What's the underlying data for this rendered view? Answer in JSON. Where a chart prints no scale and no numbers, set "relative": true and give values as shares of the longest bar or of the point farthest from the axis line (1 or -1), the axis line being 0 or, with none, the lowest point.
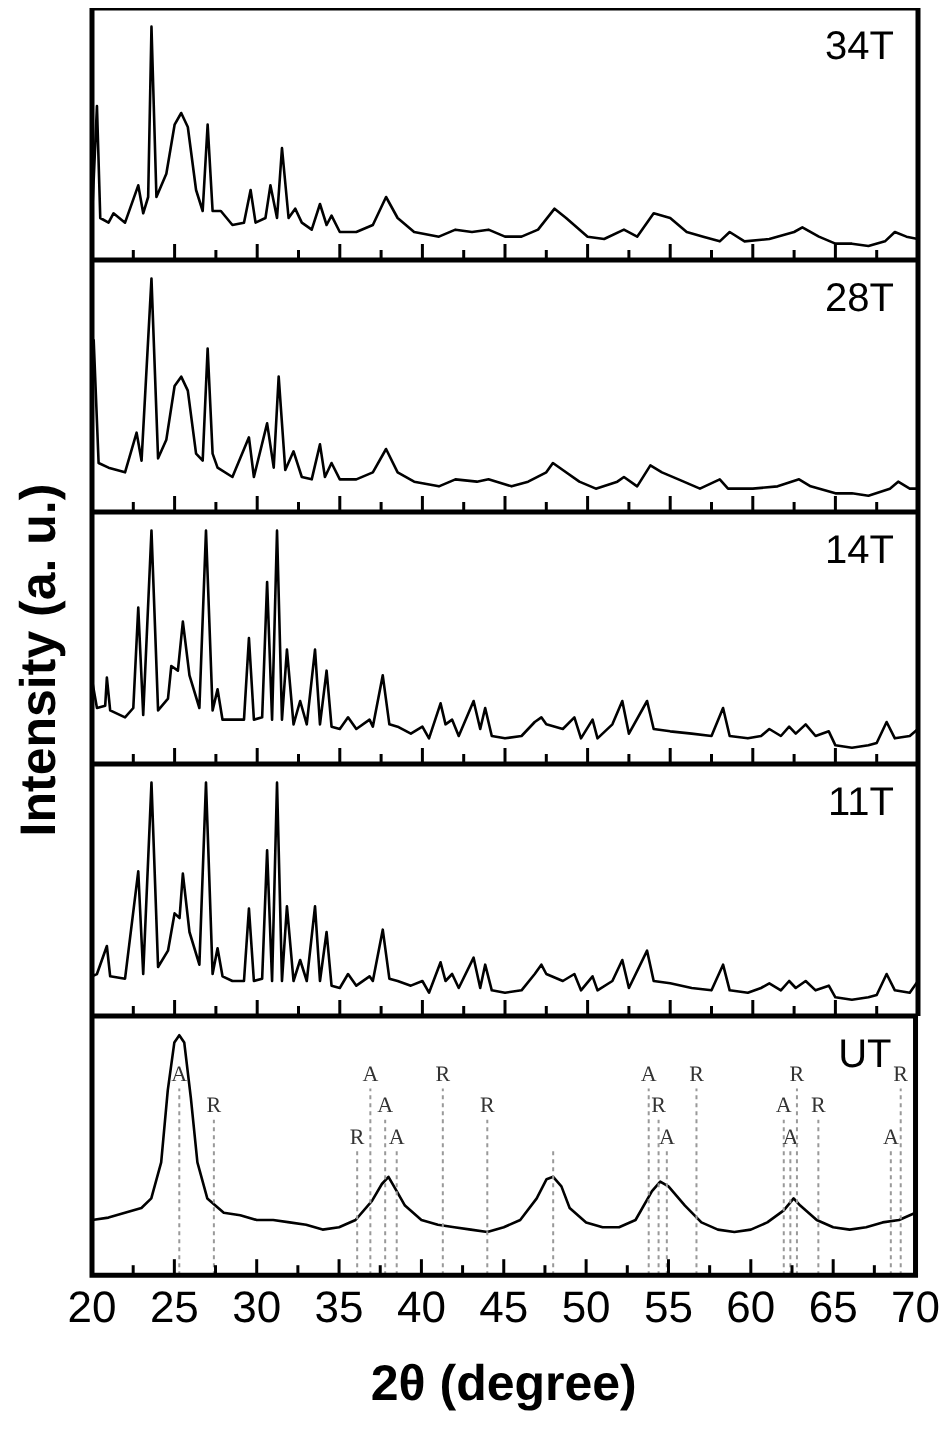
{
  "chart_data": [
    {
      "type": "line",
      "relative": true,
      "tick_labels": false,
      "xlim": [
        20,
        70
      ],
      "xticks": [
        20,
        {
          "value": 22.5,
          "label": null
        },
        25,
        {
          "value": 27.5,
          "label": null
        },
        30,
        {
          "value": 32.5,
          "label": null
        },
        35,
        {
          "value": 37.5,
          "label": null
        },
        40,
        {
          "value": 42.5,
          "label": null
        },
        45,
        {
          "value": 47.5,
          "label": null
        },
        50,
        {
          "value": 52.5,
          "label": null
        },
        55,
        {
          "value": 57.5,
          "label": null
        },
        60,
        {
          "value": 62.5,
          "label": null
        },
        65,
        {
          "value": 67.5,
          "label": null
        },
        70
      ],
      "series": [
        {
          "name": "34T",
          "color": "#000000",
          "x": [
            20.0,
            20.3,
            20.5,
            21,
            21.3,
            22,
            22.8,
            23.1,
            23.4,
            23.6,
            23.9,
            24.5,
            25.0,
            25.4,
            25.8,
            26.3,
            26.7,
            27.0,
            27.3,
            27.8,
            28.5,
            29.2,
            29.6,
            29.9,
            30.5,
            30.8,
            31.2,
            31.5,
            31.9,
            32.3,
            32.7,
            33.3,
            33.8,
            34.2,
            34.5,
            35,
            36,
            37,
            37.8,
            38.5,
            39.5,
            41,
            42,
            43,
            44,
            45,
            46,
            47,
            48,
            48.7,
            50,
            51,
            52.2,
            53,
            54,
            55,
            56,
            57,
            58,
            58.6,
            59.5,
            61,
            62.5,
            63,
            64,
            65,
            66,
            67,
            68,
            68.6,
            69.3,
            70
          ],
          "values": [
            0.18,
            0.66,
            0.18,
            0.16,
            0.2,
            0.16,
            0.32,
            0.2,
            0.27,
            1,
            0.27,
            0.37,
            0.58,
            0.63,
            0.57,
            0.3,
            0.21,
            0.58,
            0.21,
            0.21,
            0.15,
            0.16,
            0.3,
            0.16,
            0.18,
            0.32,
            0.18,
            0.48,
            0.18,
            0.22,
            0.16,
            0.13,
            0.24,
            0.15,
            0.19,
            0.12,
            0.12,
            0.15,
            0.27,
            0.18,
            0.12,
            0.1,
            0.13,
            0.12,
            0.13,
            0.1,
            0.1,
            0.13,
            0.22,
            0.18,
            0.1,
            0.09,
            0.13,
            0.1,
            0.2,
            0.18,
            0.12,
            0.1,
            0.08,
            0.12,
            0.08,
            0.09,
            0.12,
            0.14,
            0.1,
            0.07,
            0.07,
            0.06,
            0.08,
            0.12,
            0.1,
            0.09
          ]
        }
      ]
    },
    {
      "type": "line",
      "relative": true,
      "tick_labels": false,
      "xlim": [
        20,
        70
      ],
      "xticks": [
        20,
        {
          "value": 22.5,
          "label": null
        },
        25,
        {
          "value": 27.5,
          "label": null
        },
        30,
        {
          "value": 32.5,
          "label": null
        },
        35,
        {
          "value": 37.5,
          "label": null
        },
        40,
        {
          "value": 42.5,
          "label": null
        },
        45,
        {
          "value": 47.5,
          "label": null
        },
        50,
        {
          "value": 52.5,
          "label": null
        },
        55,
        {
          "value": 57.5,
          "label": null
        },
        60,
        {
          "value": 62.5,
          "label": null
        },
        65,
        {
          "value": 67.5,
          "label": null
        },
        70
      ],
      "series": [
        {
          "name": "28T",
          "color": "#000000",
          "x": [
            20.1,
            20.4,
            21,
            22,
            22.7,
            23,
            23.6,
            24,
            24.5,
            25.0,
            25.4,
            25.8,
            26.3,
            26.7,
            27.0,
            27.3,
            27.6,
            28.5,
            29.5,
            29.8,
            30.6,
            31.0,
            31.3,
            31.7,
            32.2,
            32.7,
            33.3,
            33.8,
            34.1,
            34.5,
            35,
            36,
            37,
            37.8,
            38.5,
            39.5,
            41,
            42,
            43.3,
            44,
            45.4,
            46.4,
            47.5,
            47.9,
            48.5,
            49.5,
            50.5,
            51.8,
            52.2,
            53,
            53.8,
            54.5,
            55.5,
            56.8,
            58.0,
            58.5,
            60,
            61.5,
            62.8,
            63.5,
            65,
            66,
            67,
            68.3,
            68.8,
            69.5,
            70
          ],
          "values": [
            0.74,
            0.21,
            0.19,
            0.17,
            0.34,
            0.22,
            1,
            0.23,
            0.31,
            0.54,
            0.58,
            0.52,
            0.25,
            0.22,
            0.7,
            0.25,
            0.19,
            0.15,
            0.32,
            0.15,
            0.38,
            0.19,
            0.58,
            0.18,
            0.26,
            0.15,
            0.14,
            0.29,
            0.15,
            0.21,
            0.14,
            0.14,
            0.17,
            0.27,
            0.17,
            0.13,
            0.11,
            0.14,
            0.13,
            0.14,
            0.11,
            0.13,
            0.17,
            0.21,
            0.18,
            0.13,
            0.1,
            0.13,
            0.15,
            0.11,
            0.2,
            0.17,
            0.14,
            0.1,
            0.14,
            0.1,
            0.1,
            0.11,
            0.14,
            0.11,
            0.08,
            0.08,
            0.07,
            0.1,
            0.13,
            0.1,
            0.1
          ]
        }
      ]
    },
    {
      "type": "line",
      "relative": true,
      "tick_labels": false,
      "ylabel": "Intensity (a. u.)",
      "xlim": [
        20,
        70
      ],
      "xticks": [
        20,
        {
          "value": 22.5,
          "label": null
        },
        25,
        {
          "value": 27.5,
          "label": null
        },
        30,
        {
          "value": 32.5,
          "label": null
        },
        35,
        {
          "value": 37.5,
          "label": null
        },
        40,
        {
          "value": 42.5,
          "label": null
        },
        45,
        {
          "value": 47.5,
          "label": null
        },
        50,
        {
          "value": 52.5,
          "label": null
        },
        55,
        {
          "value": 57.5,
          "label": null
        },
        60,
        {
          "value": 62.5,
          "label": null
        },
        65,
        {
          "value": 67.5,
          "label": null
        },
        70
      ],
      "series": [
        {
          "name": "14T",
          "color": "#000000",
          "x": [
            20.0,
            20.3,
            20.8,
            20.9,
            21.1,
            22,
            22.5,
            22.8,
            23.1,
            23.6,
            24.0,
            24.6,
            24.8,
            25.2,
            25.5,
            25.9,
            26.5,
            26.9,
            27.3,
            27.6,
            27.9,
            28.5,
            29.2,
            29.5,
            29.8,
            30.3,
            30.6,
            30.9,
            31.2,
            31.5,
            31.8,
            32.2,
            32.6,
            33,
            33.5,
            33.8,
            34.2,
            34.5,
            35,
            35.5,
            36,
            36.8,
            37.0,
            37.6,
            38.0,
            38.5,
            39.3,
            40,
            40.4,
            41.1,
            41.4,
            41.8,
            42.2,
            43.1,
            43.5,
            43.8,
            44.2,
            45,
            46,
            46.8,
            47.2,
            47.5,
            48.5,
            49.2,
            49.6,
            50.3,
            50.6,
            51.5,
            52.1,
            52.5,
            53.6,
            54.0,
            55,
            56.3,
            57.5,
            58.2,
            58.6,
            59.7,
            60.5,
            61,
            61.7,
            62.2,
            62.6,
            63.2,
            63.8,
            64.6,
            65,
            66,
            67,
            67.5,
            68.1,
            68.6,
            69.5,
            70
          ],
          "values": [
            0.36,
            0.24,
            0.25,
            0.37,
            0.23,
            0.2,
            0.24,
            0.67,
            0.21,
            1,
            0.23,
            0.28,
            0.42,
            0.4,
            0.61,
            0.38,
            0.24,
            1,
            0.23,
            0.32,
            0.19,
            0.19,
            0.19,
            0.54,
            0.19,
            0.2,
            0.78,
            0.19,
            1,
            0.19,
            0.49,
            0.17,
            0.27,
            0.17,
            0.49,
            0.17,
            0.4,
            0.16,
            0.15,
            0.2,
            0.15,
            0.19,
            0.16,
            0.38,
            0.17,
            0.16,
            0.13,
            0.16,
            0.11,
            0.26,
            0.17,
            0.19,
            0.12,
            0.27,
            0.15,
            0.24,
            0.12,
            0.11,
            0.12,
            0.18,
            0.2,
            0.17,
            0.15,
            0.2,
            0.11,
            0.19,
            0.11,
            0.17,
            0.27,
            0.13,
            0.27,
            0.15,
            0.14,
            0.13,
            0.12,
            0.24,
            0.12,
            0.11,
            0.12,
            0.15,
            0.12,
            0.16,
            0.13,
            0.17,
            0.12,
            0.14,
            0.08,
            0.07,
            0.08,
            0.09,
            0.18,
            0.11,
            0.12,
            0.15
          ]
        }
      ]
    },
    {
      "type": "line",
      "relative": true,
      "tick_labels": false,
      "xlim": [
        20,
        70
      ],
      "xticks": [
        20,
        {
          "value": 22.5,
          "label": null
        },
        25,
        {
          "value": 27.5,
          "label": null
        },
        30,
        {
          "value": 32.5,
          "label": null
        },
        35,
        {
          "value": 37.5,
          "label": null
        },
        40,
        {
          "value": 42.5,
          "label": null
        },
        45,
        {
          "value": 47.5,
          "label": null
        },
        50,
        {
          "value": 52.5,
          "label": null
        },
        55,
        {
          "value": 57.5,
          "label": null
        },
        60,
        {
          "value": 62.5,
          "label": null
        },
        65,
        {
          "value": 67.5,
          "label": null
        },
        70
      ],
      "series": [
        {
          "name": "11T",
          "color": "#000000",
          "x": [
            20.0,
            20.3,
            20.9,
            21.1,
            22,
            22.8,
            23.1,
            23.6,
            24.0,
            24.6,
            25.0,
            25.3,
            25.5,
            25.9,
            26.5,
            26.9,
            27.3,
            27.6,
            27.9,
            28.5,
            29.2,
            29.5,
            29.8,
            30.3,
            30.6,
            30.9,
            31.2,
            31.5,
            31.8,
            32.2,
            32.6,
            33,
            33.5,
            33.8,
            34.2,
            34.5,
            35,
            35.5,
            36,
            36.8,
            37.0,
            37.6,
            38.0,
            38.5,
            39.3,
            40,
            40.4,
            41.1,
            41.4,
            41.8,
            42.2,
            43.1,
            43.5,
            43.8,
            44.2,
            45,
            46,
            46.8,
            47.2,
            47.5,
            48.5,
            49.2,
            49.6,
            50.3,
            50.6,
            51.5,
            52.1,
            52.5,
            53.6,
            54.0,
            55,
            56.3,
            57.5,
            58.2,
            58.6,
            59.7,
            60.5,
            61,
            61.7,
            62.2,
            62.6,
            63.2,
            63.8,
            64.6,
            65,
            66,
            67,
            67.5,
            68.1,
            68.6,
            69.5,
            70
          ],
          "values": [
            0.17,
            0.18,
            0.3,
            0.17,
            0.16,
            0.62,
            0.18,
            1,
            0.21,
            0.28,
            0.44,
            0.42,
            0.61,
            0.36,
            0.22,
            1,
            0.18,
            0.29,
            0.17,
            0.15,
            0.15,
            0.46,
            0.15,
            0.16,
            0.71,
            0.15,
            1,
            0.15,
            0.47,
            0.15,
            0.24,
            0.15,
            0.47,
            0.15,
            0.36,
            0.13,
            0.12,
            0.18,
            0.13,
            0.17,
            0.15,
            0.37,
            0.16,
            0.15,
            0.13,
            0.15,
            0.1,
            0.23,
            0.15,
            0.18,
            0.12,
            0.25,
            0.12,
            0.22,
            0.11,
            0.1,
            0.11,
            0.18,
            0.22,
            0.18,
            0.15,
            0.18,
            0.11,
            0.17,
            0.11,
            0.15,
            0.24,
            0.12,
            0.28,
            0.15,
            0.14,
            0.12,
            0.11,
            0.22,
            0.11,
            0.1,
            0.12,
            0.14,
            0.11,
            0.15,
            0.12,
            0.15,
            0.11,
            0.13,
            0.08,
            0.07,
            0.08,
            0.09,
            0.18,
            0.11,
            0.1,
            0.15
          ]
        }
      ]
    },
    {
      "type": "line",
      "relative": true,
      "tick_labels": "x",
      "xlabel": "2θ (degree)",
      "xlim": [
        20,
        70
      ],
      "xticks": [
        20,
        {
          "value": 22.5,
          "label": null
        },
        25,
        {
          "value": 27.5,
          "label": null
        },
        30,
        {
          "value": 32.5,
          "label": null
        },
        35,
        {
          "value": 37.5,
          "label": null
        },
        40,
        {
          "value": 42.5,
          "label": null
        },
        45,
        {
          "value": 47.5,
          "label": null
        },
        50,
        {
          "value": 52.5,
          "label": null
        },
        55,
        {
          "value": 57.5,
          "label": null
        },
        60,
        {
          "value": 62.5,
          "label": null
        },
        65,
        {
          "value": 67.5,
          "label": null
        },
        70
      ],
      "series": [
        {
          "name": "UT",
          "color": "#000000",
          "x": [
            20,
            21,
            22,
            23,
            23.6,
            24.2,
            24.6,
            25.0,
            25.3,
            25.6,
            26.0,
            26.4,
            27,
            28,
            29,
            30,
            31,
            32,
            33,
            34,
            35,
            36,
            37,
            37.6,
            38,
            38.5,
            39,
            40,
            41,
            42,
            43,
            44,
            45,
            46,
            47,
            47.6,
            48,
            48.5,
            49,
            50,
            51,
            52,
            53,
            54,
            54.5,
            55,
            56,
            57,
            58,
            59,
            60,
            61,
            62,
            62.6,
            63,
            64,
            65,
            66,
            67,
            68,
            69,
            70
          ],
          "values": [
            0.23,
            0.24,
            0.26,
            0.28,
            0.32,
            0.47,
            0.77,
            0.97,
            1,
            0.97,
            0.74,
            0.47,
            0.32,
            0.26,
            0.25,
            0.23,
            0.23,
            0.22,
            0.21,
            0.19,
            0.2,
            0.23,
            0.31,
            0.38,
            0.41,
            0.35,
            0.29,
            0.23,
            0.21,
            0.2,
            0.19,
            0.18,
            0.2,
            0.23,
            0.32,
            0.4,
            0.41,
            0.37,
            0.28,
            0.22,
            0.2,
            0.2,
            0.23,
            0.35,
            0.39,
            0.37,
            0.29,
            0.22,
            0.19,
            0.18,
            0.19,
            0.22,
            0.27,
            0.32,
            0.29,
            0.23,
            0.2,
            0.19,
            0.2,
            0.22,
            0.23,
            0.26
          ]
        }
      ],
      "ref_lines": [
        {
          "axis": "x",
          "value": 25.3,
          "label": "A",
          "color": "#999999",
          "line_style": "dotted"
        },
        {
          "axis": "x",
          "value": 27.4,
          "label": "R",
          "color": "#999999",
          "line_style": "dotted"
        },
        {
          "axis": "x",
          "value": 36.1,
          "label": "R",
          "color": "#999999",
          "line_style": "dotted"
        },
        {
          "axis": "x",
          "value": 36.9,
          "label": "A",
          "color": "#999999",
          "line_style": "dotted"
        },
        {
          "axis": "x",
          "value": 37.8,
          "label": "A",
          "color": "#999999",
          "line_style": "dotted"
        },
        {
          "axis": "x",
          "value": 38.5,
          "label": "A",
          "color": "#999999",
          "line_style": "dotted"
        },
        {
          "axis": "x",
          "value": 41.3,
          "label": "R",
          "color": "#999999",
          "line_style": "dotted"
        },
        {
          "axis": "x",
          "value": 44.0,
          "label": "R",
          "color": "#999999",
          "line_style": "dotted"
        },
        {
          "axis": "x",
          "value": 48.0,
          "color": "#999999",
          "line_style": "dotted"
        },
        {
          "axis": "x",
          "value": 53.8,
          "label": "A",
          "color": "#999999",
          "line_style": "dotted"
        },
        {
          "axis": "x",
          "value": 54.4,
          "label": "R",
          "color": "#999999",
          "line_style": "dotted"
        },
        {
          "axis": "x",
          "value": 54.9,
          "label": "A",
          "color": "#999999",
          "line_style": "dotted"
        },
        {
          "axis": "x",
          "value": 56.7,
          "label": "R",
          "color": "#999999",
          "line_style": "dotted"
        },
        {
          "axis": "x",
          "value": 62.0,
          "label": "A",
          "color": "#999999",
          "line_style": "dotted"
        },
        {
          "axis": "x",
          "value": 62.4,
          "label": "A",
          "color": "#999999",
          "line_style": "dotted"
        },
        {
          "axis": "x",
          "value": 62.8,
          "label": "R",
          "color": "#999999",
          "line_style": "dotted"
        },
        {
          "axis": "x",
          "value": 64.1,
          "label": "R",
          "color": "#999999",
          "line_style": "dotted"
        },
        {
          "axis": "x",
          "value": 68.5,
          "label": "A",
          "color": "#999999",
          "line_style": "dotted"
        },
        {
          "axis": "x",
          "value": 69.1,
          "label": "R",
          "color": "#999999",
          "line_style": "dotted"
        }
      ]
    }
  ]
}
